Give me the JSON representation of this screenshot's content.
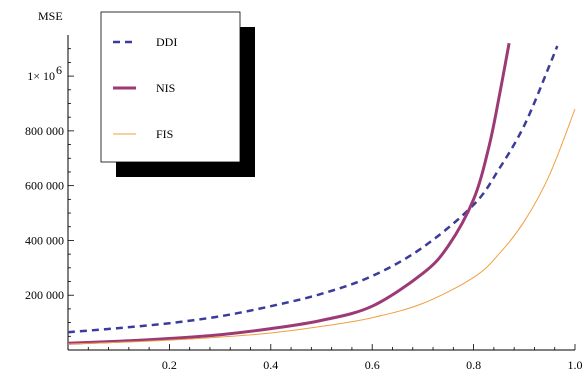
{
  "chart_data": {
    "type": "line",
    "ylabel": "MSE",
    "xlim": [
      0,
      1.0
    ],
    "ylim": [
      0,
      1150000
    ],
    "x_ticks": [
      {
        "value": 0.2,
        "label": "0.2"
      },
      {
        "value": 0.4,
        "label": "0.4"
      },
      {
        "value": 0.6,
        "label": "0.6"
      },
      {
        "value": 0.8,
        "label": "0.8"
      },
      {
        "value": 1.0,
        "label": "1.0"
      }
    ],
    "y_ticks": [
      {
        "value": 200000,
        "label": "200 000"
      },
      {
        "value": 400000,
        "label": "400 000"
      },
      {
        "value": 600000,
        "label": "600 000"
      },
      {
        "value": 800000,
        "label": "800 000"
      },
      {
        "value": 1000000,
        "label": "1× 10"
      }
    ],
    "y_top_tick_exponent": "6",
    "grid": false,
    "legend_position": "top-left",
    "series": [
      {
        "name": "DDI",
        "color": "#3b3b9a",
        "style": "dashed",
        "x": [
          0.0,
          0.1,
          0.2,
          0.3,
          0.4,
          0.5,
          0.6,
          0.7,
          0.8,
          0.85,
          0.9,
          0.95,
          0.965
        ],
        "y": [
          65000,
          80000,
          98000,
          123000,
          160000,
          205000,
          270000,
          375000,
          530000,
          660000,
          820000,
          1040000,
          1110000
        ]
      },
      {
        "name": "NIS",
        "color": "#9c3a76",
        "style": "solid-thick",
        "x": [
          0.0,
          0.1,
          0.2,
          0.3,
          0.4,
          0.5,
          0.6,
          0.7,
          0.75,
          0.8,
          0.83,
          0.85,
          0.87
        ],
        "y": [
          25000,
          32000,
          42000,
          56000,
          78000,
          108000,
          160000,
          280000,
          380000,
          550000,
          740000,
          920000,
          1120000
        ]
      },
      {
        "name": "FIS",
        "color": "#f0a040",
        "style": "solid-thin",
        "x": [
          0.0,
          0.1,
          0.2,
          0.3,
          0.4,
          0.5,
          0.6,
          0.7,
          0.8,
          0.85,
          0.9,
          0.95,
          1.0
        ],
        "y": [
          22000,
          28000,
          36000,
          47000,
          62000,
          86000,
          118000,
          170000,
          265000,
          350000,
          470000,
          640000,
          880000
        ]
      }
    ]
  }
}
